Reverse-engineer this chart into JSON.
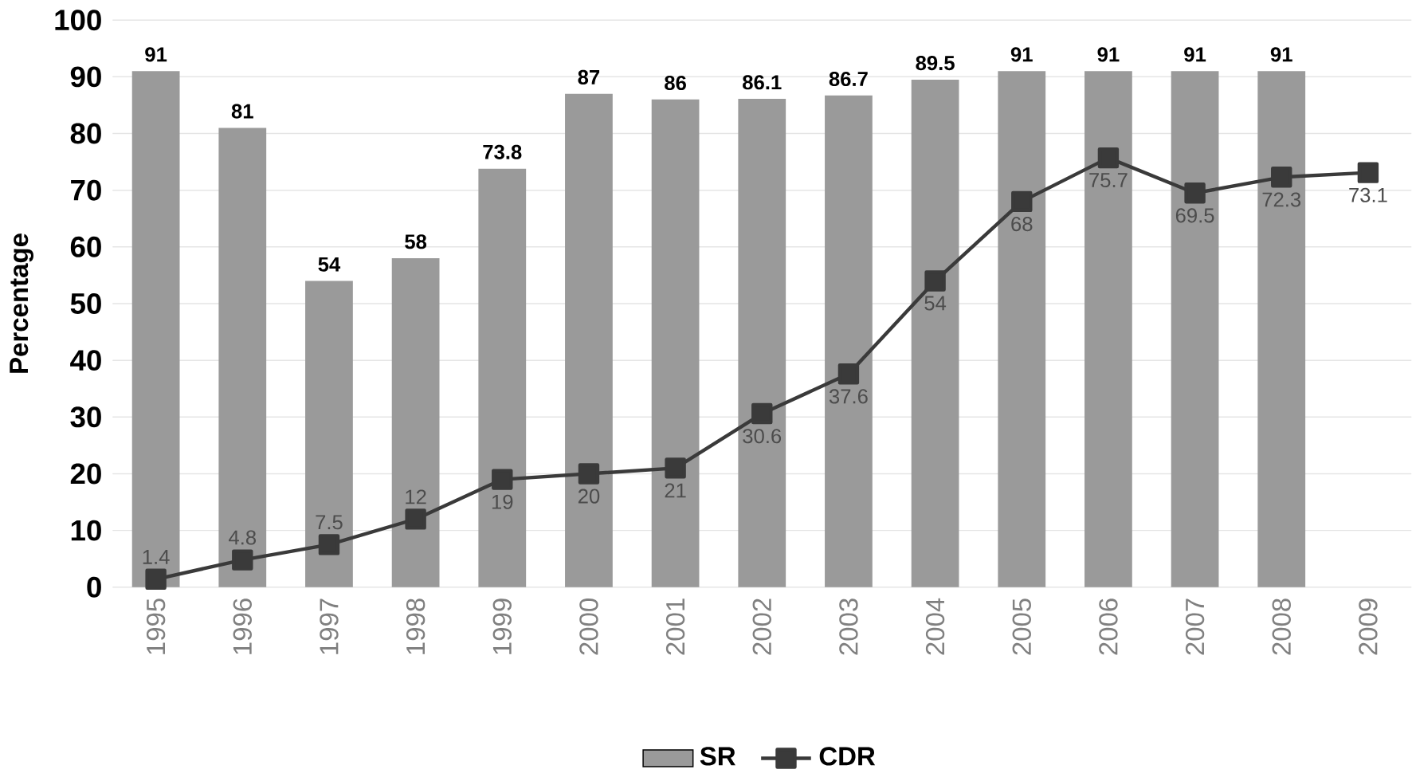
{
  "chart_data": {
    "type": "bar",
    "ylabel": "Percentage",
    "categories": [
      "1995",
      "1996",
      "1997",
      "1998",
      "1999",
      "2000",
      "2001",
      "2002",
      "2003",
      "2004",
      "2005",
      "2006",
      "2007",
      "2008",
      "2009"
    ],
    "series": [
      {
        "name": "SR",
        "color": "#9a9a9a",
        "values": [
          91,
          81,
          54,
          58,
          73.8,
          87,
          86,
          86.1,
          86.7,
          89.5,
          91,
          91,
          91,
          91,
          null
        ]
      },
      {
        "name": "CDR",
        "type": "line",
        "color": "#3a3a3a",
        "marker": "square",
        "values": [
          1.4,
          4.8,
          7.5,
          12,
          19,
          20,
          21,
          30.6,
          37.6,
          54,
          68,
          75.7,
          69.5,
          72.3,
          73.1
        ]
      }
    ],
    "ylim": [
      0,
      100
    ],
    "yticks": [
      0,
      10,
      20,
      30,
      40,
      50,
      60,
      70,
      80,
      90,
      100
    ],
    "grid": "y",
    "legend": "bottom",
    "data_labels": true
  }
}
